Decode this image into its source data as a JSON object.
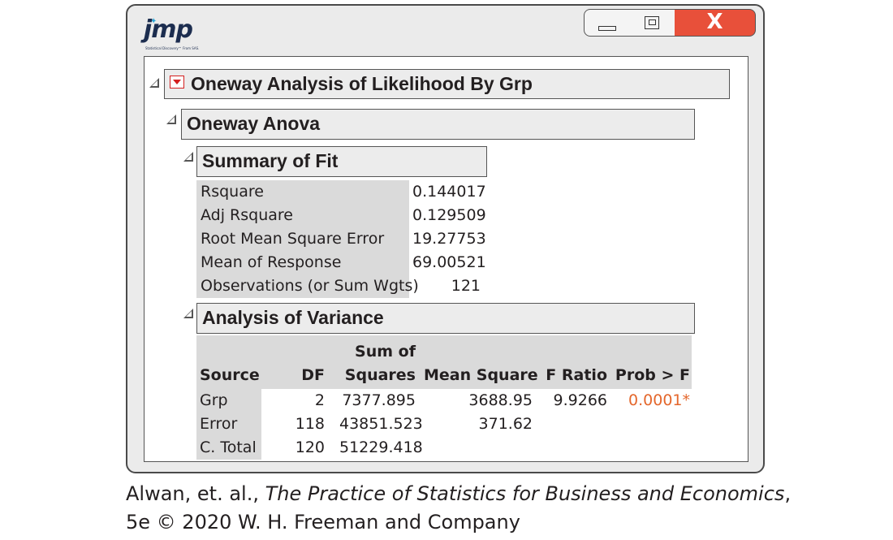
{
  "window": {
    "logo": "jmp",
    "logo_tagline": "Statistical Discovery™ From SAS.",
    "close_glyph": "X"
  },
  "report": {
    "main_title": "Oneway Analysis of Likelihood By Grp",
    "anova_title": "Oneway Anova",
    "summary": {
      "title": "Summary of Fit",
      "rows": [
        {
          "label": "Rsquare",
          "value": "0.144017"
        },
        {
          "label": "Adj Rsquare",
          "value": "0.129509"
        },
        {
          "label": "Root Mean Square Error",
          "value": "19.27753"
        },
        {
          "label": "Mean of Response",
          "value": "69.00521"
        },
        {
          "label": "Observations (or Sum Wgts)",
          "value": "121"
        }
      ]
    },
    "aov": {
      "title": "Analysis of Variance",
      "headers": {
        "source": "Source",
        "df": "DF",
        "ss_top": "Sum of",
        "ss_bottom": "Squares",
        "ms": "Mean Square",
        "f": "F Ratio",
        "p": "Prob > F"
      },
      "rows": [
        {
          "source": "Grp",
          "df": "2",
          "ss": "7377.895",
          "ms": "3688.95",
          "f": "9.9266",
          "p": "0.0001*"
        },
        {
          "source": "Error",
          "df": "118",
          "ss": "43851.523",
          "ms": "371.62",
          "f": "",
          "p": ""
        },
        {
          "source": "C. Total",
          "df": "120",
          "ss": "51229.418",
          "ms": "",
          "f": "",
          "p": ""
        }
      ]
    }
  },
  "colors": {
    "significant_p": "#e4672c",
    "close_button": "#e8503a",
    "disclosure_red": "#d42020"
  },
  "caption": {
    "line1_prefix": "Alwan, et. al., ",
    "line1_title": "The Practice of Statistics for Business and Economics",
    "line1_suffix": ",",
    "line2": "5e © 2020 W. H. Freeman and Company"
  }
}
